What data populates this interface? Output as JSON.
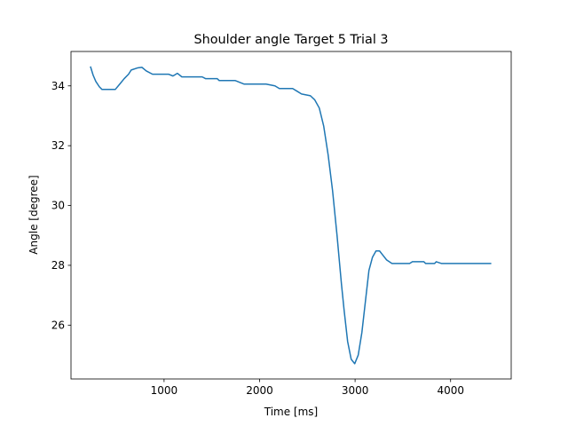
{
  "chart_data": {
    "type": "line",
    "title": "Shoulder angle Target 5 Trial 3",
    "x_label": "Time [ms]",
    "y_label": "Angle [degree]",
    "x": [
      229,
      257,
      285,
      322,
      350,
      489,
      536,
      582,
      628,
      656,
      721,
      768,
      814,
      879,
      1046,
      1093,
      1139,
      1186,
      1399,
      1436,
      1557,
      1576,
      1743,
      1836,
      2068,
      2161,
      2207,
      2346,
      2393,
      2439,
      2532,
      2578,
      2625,
      2671,
      2718,
      2764,
      2811,
      2857,
      2885,
      2922,
      2959,
      2996,
      3033,
      3071,
      3108,
      3145,
      3182,
      3219,
      3256,
      3293,
      3330,
      3386,
      3571,
      3600,
      3720,
      3739,
      3832,
      3850,
      3906,
      4426
    ],
    "series": [
      {
        "name": "Shoulder angle",
        "color": "#1f77b4",
        "values": [
          34.65,
          34.36,
          34.15,
          33.97,
          33.88,
          33.88,
          34.06,
          34.24,
          34.39,
          34.53,
          34.6,
          34.62,
          34.5,
          34.39,
          34.39,
          34.33,
          34.42,
          34.3,
          34.3,
          34.24,
          34.24,
          34.18,
          34.18,
          34.06,
          34.06,
          34.0,
          33.91,
          33.91,
          33.82,
          33.73,
          33.67,
          33.53,
          33.26,
          32.66,
          31.69,
          30.5,
          29.0,
          27.38,
          26.5,
          25.45,
          24.86,
          24.71,
          25.0,
          25.75,
          26.79,
          27.83,
          28.27,
          28.48,
          28.48,
          28.33,
          28.18,
          28.06,
          28.06,
          28.12,
          28.12,
          28.06,
          28.06,
          28.12,
          28.06,
          28.06
        ]
      }
    ],
    "xlim": [
      25.5,
      4634.5
    ],
    "xticks": [
      1000,
      2000,
      3000,
      4000
    ],
    "ylim": [
      24.2,
      35.15
    ],
    "yticks": [
      26,
      28,
      30,
      32,
      34
    ],
    "grid": false
  }
}
